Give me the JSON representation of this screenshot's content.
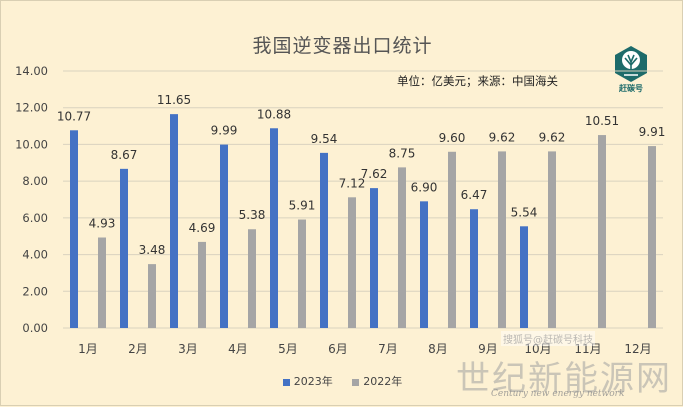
{
  "colors": {
    "s2023": "#4472c4",
    "s2022": "#a5a5a5",
    "background": "#fdf1d3",
    "logo": "#1d6b6a"
  },
  "source_text": "单位：亿美元；来源：中国海关",
  "logo": {
    "icon": "tree-logo-icon",
    "text": "赶碳号"
  },
  "watermarks": {
    "line1": "搜狐号@赶碳号科技",
    "line2": "世纪新能源网",
    "line3": "Century new energy network"
  },
  "chart_data": {
    "type": "bar",
    "title": "我国逆变器出口统计",
    "categories": [
      "1月",
      "2月",
      "3月",
      "4月",
      "5月",
      "6月",
      "7月",
      "8月",
      "9月",
      "10月",
      "11月",
      "12月"
    ],
    "series": [
      {
        "name": "2023年",
        "values": [
          10.77,
          8.67,
          11.65,
          9.99,
          10.88,
          9.54,
          7.62,
          6.9,
          6.47,
          5.54,
          null,
          null
        ],
        "labels": [
          "10.77",
          "8.67",
          "11.65",
          "9.99",
          "10.88",
          "9.54",
          "7.62",
          "6.90",
          "6.47",
          "5.54",
          "",
          ""
        ]
      },
      {
        "name": "2022年",
        "values": [
          4.93,
          3.48,
          4.69,
          5.38,
          5.91,
          7.12,
          8.75,
          9.6,
          9.62,
          9.62,
          10.51,
          9.91
        ],
        "labels": [
          "4.93",
          "3.48",
          "4.69",
          "5.38",
          "5.91",
          "7.12",
          "8.75",
          "9.60",
          "9.62",
          "9.62",
          "10.51",
          "9.91"
        ]
      }
    ],
    "ylim": [
      0,
      14
    ],
    "yticks": [
      "0.00",
      "2.00",
      "4.00",
      "6.00",
      "8.00",
      "10.00",
      "12.00",
      "14.00"
    ],
    "grid": true,
    "legend_position": "bottom"
  }
}
